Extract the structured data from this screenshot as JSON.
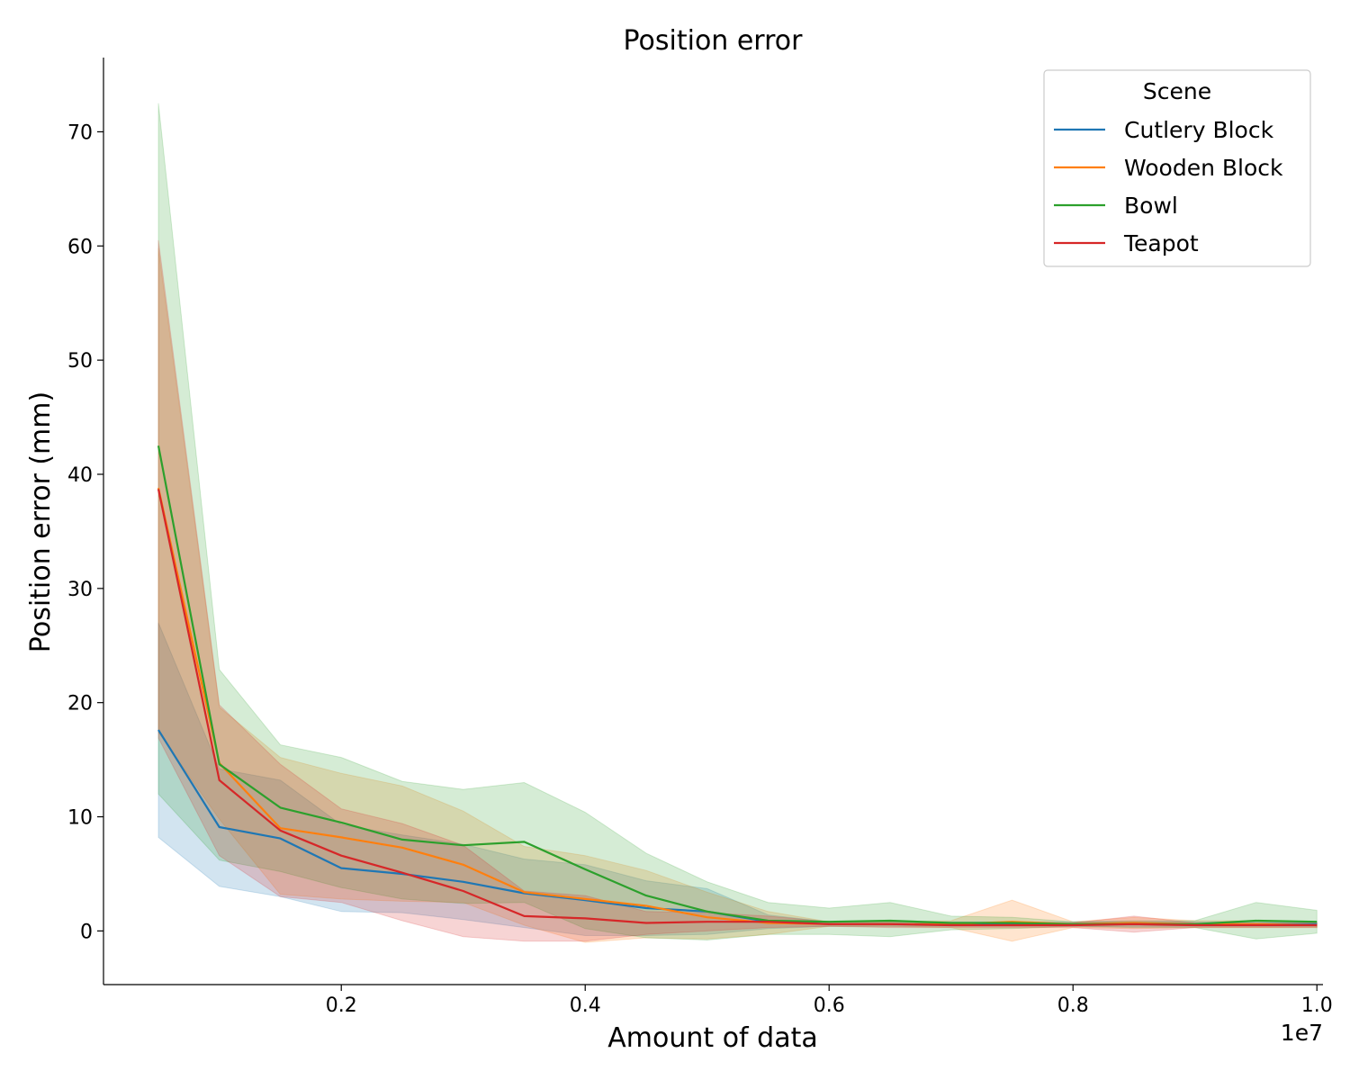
{
  "chart_data": {
    "type": "line",
    "title": "Position error",
    "xlabel": "Amount of data",
    "ylabel": "Position error (mm)",
    "x_offset_text": "1e7",
    "x_scale": 10000000,
    "xlim": [
      0.005,
      1.005
    ],
    "ylim": [
      -4.7,
      76.5
    ],
    "xticks": [
      0.2,
      0.4,
      0.6,
      0.8,
      1.0
    ],
    "xtick_labels": [
      "0.2",
      "0.4",
      "0.6",
      "0.8",
      "1.0"
    ],
    "yticks": [
      0,
      10,
      20,
      30,
      40,
      50,
      60,
      70
    ],
    "ytick_labels": [
      "0",
      "10",
      "20",
      "30",
      "40",
      "50",
      "60",
      "70"
    ],
    "grid": false,
    "legend": {
      "title": "Scene",
      "placement": "top-right"
    },
    "x": [
      0.05,
      0.1,
      0.15,
      0.2,
      0.25,
      0.3,
      0.35,
      0.4,
      0.45,
      0.5,
      0.55,
      0.6,
      0.65,
      0.7,
      0.75,
      0.8,
      0.85,
      0.9,
      0.95,
      1.0
    ],
    "series": [
      {
        "name": "Cutlery Block",
        "color": "#1f77b4",
        "values": [
          17.6,
          9.1,
          8.1,
          5.5,
          5.0,
          4.3,
          3.3,
          2.7,
          2.0,
          1.7,
          0.8,
          0.6,
          0.6,
          0.6,
          0.6,
          0.6,
          0.6,
          0.6,
          0.6,
          0.6
        ],
        "lower": [
          8.2,
          3.9,
          3.0,
          1.7,
          1.6,
          1.0,
          0.3,
          -0.4,
          -0.4,
          -0.3,
          0.2,
          0.4,
          0.4,
          0.4,
          0.4,
          0.4,
          0.4,
          0.4,
          0.4,
          0.4
        ],
        "upper": [
          27.0,
          14.2,
          13.2,
          9.3,
          8.4,
          7.6,
          6.3,
          5.8,
          4.4,
          3.7,
          1.4,
          0.8,
          0.8,
          0.8,
          0.8,
          0.8,
          0.8,
          0.8,
          0.8,
          0.8
        ]
      },
      {
        "name": "Wooden Block",
        "color": "#ff7f0e",
        "values": [
          38.8,
          14.7,
          9.0,
          8.2,
          7.3,
          5.8,
          3.4,
          2.8,
          2.2,
          1.2,
          0.7,
          0.6,
          0.6,
          0.6,
          0.8,
          0.6,
          0.7,
          0.6,
          0.6,
          0.5
        ],
        "lower": [
          17.4,
          9.8,
          3.2,
          2.8,
          2.6,
          2.5,
          0.5,
          -1.0,
          -0.6,
          -0.7,
          -0.3,
          0.4,
          0.4,
          0.3,
          -0.9,
          0.3,
          0.2,
          0.3,
          0.3,
          0.3
        ],
        "upper": [
          59.8,
          19.6,
          15.2,
          13.8,
          12.7,
          10.5,
          7.4,
          6.6,
          5.3,
          3.4,
          1.7,
          0.8,
          0.8,
          0.9,
          2.7,
          0.8,
          1.2,
          0.9,
          0.9,
          0.7
        ]
      },
      {
        "name": "Bowl",
        "color": "#2ca02c",
        "values": [
          42.5,
          14.6,
          10.8,
          9.5,
          8.0,
          7.5,
          7.8,
          5.4,
          3.1,
          1.7,
          0.9,
          0.8,
          0.9,
          0.7,
          0.7,
          0.6,
          0.6,
          0.6,
          0.9,
          0.8
        ],
        "lower": [
          12.0,
          6.2,
          5.2,
          3.8,
          2.8,
          2.4,
          2.5,
          0.2,
          -0.6,
          -0.8,
          -0.3,
          -0.3,
          -0.5,
          0.1,
          0.2,
          0.4,
          0.3,
          0.3,
          -0.7,
          -0.2
        ],
        "upper": [
          72.5,
          22.9,
          16.3,
          15.2,
          13.1,
          12.4,
          13.0,
          10.4,
          6.8,
          4.3,
          2.5,
          2.0,
          2.5,
          1.3,
          1.2,
          0.8,
          0.9,
          0.9,
          2.5,
          1.8
        ]
      },
      {
        "name": "Teapot",
        "color": "#d62728",
        "values": [
          38.7,
          13.2,
          8.8,
          6.6,
          5.1,
          3.5,
          1.3,
          1.1,
          0.7,
          0.8,
          0.8,
          0.6,
          0.6,
          0.5,
          0.5,
          0.5,
          0.6,
          0.5,
          0.5,
          0.5
        ],
        "lower": [
          16.9,
          6.6,
          3.0,
          2.5,
          0.9,
          -0.5,
          -0.9,
          -0.9,
          -0.3,
          0.0,
          0.3,
          0.4,
          0.3,
          0.3,
          0.3,
          0.3,
          -0.1,
          0.3,
          0.3,
          0.3
        ],
        "upper": [
          60.5,
          19.8,
          14.6,
          10.7,
          9.4,
          7.5,
          3.5,
          3.1,
          1.7,
          1.6,
          1.3,
          0.8,
          0.9,
          0.7,
          0.7,
          0.7,
          1.3,
          0.7,
          0.7,
          0.7
        ]
      }
    ]
  }
}
